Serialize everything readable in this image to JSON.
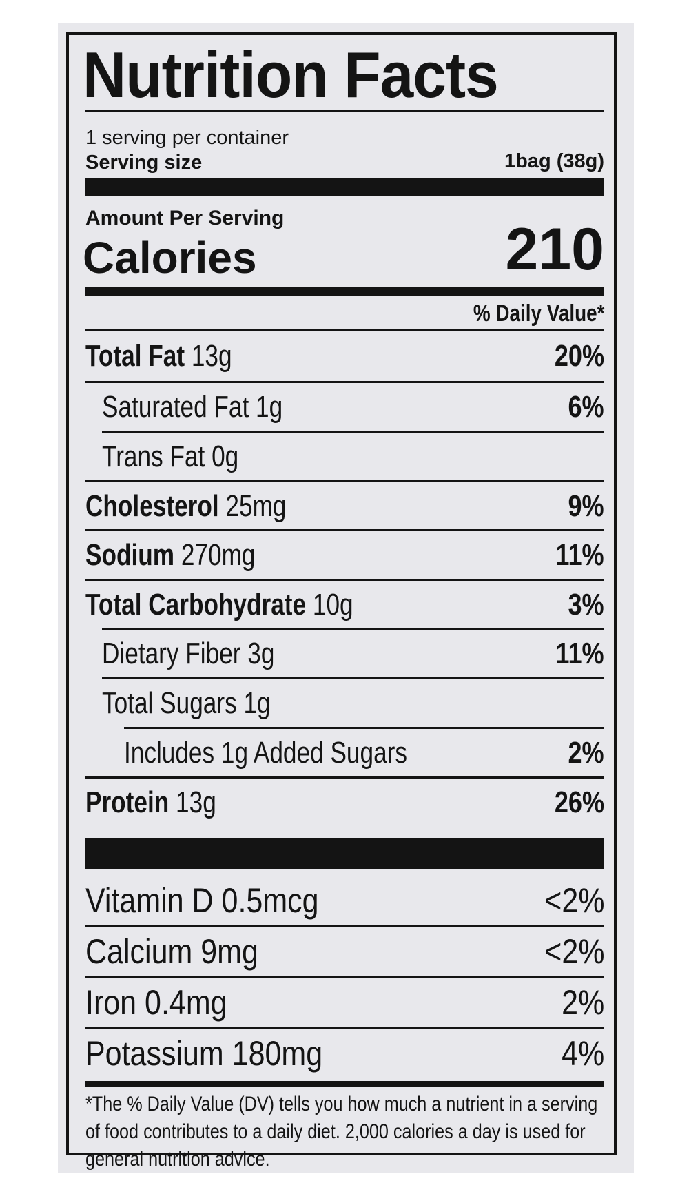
{
  "title": "Nutrition Facts",
  "servings_per_container": "1 serving per container",
  "serving_size_label": "Serving size",
  "serving_size_value": "1bag (38g)",
  "amount_per_serving": "Amount Per Serving",
  "calories_label": "Calories",
  "calories_value": "210",
  "daily_value_header": "% Daily Value*",
  "nutrients": [
    {
      "name": "Total Fat",
      "amount": "13g",
      "dv": "20%"
    },
    {
      "name": "Saturated Fat 1g",
      "amount": "",
      "dv": "6%"
    },
    {
      "name": "Trans Fat 0g",
      "amount": "",
      "dv": ""
    },
    {
      "name": "Cholesterol",
      "amount": "25mg",
      "dv": "9%"
    },
    {
      "name": "Sodium",
      "amount": "270mg",
      "dv": "11%"
    },
    {
      "name": "Total Carbohydrate",
      "amount": "10g",
      "dv": "3%"
    },
    {
      "name": "Dietary Fiber 3g",
      "amount": "",
      "dv": "11%"
    },
    {
      "name": "Total Sugars 1g",
      "amount": "",
      "dv": ""
    },
    {
      "name": "Includes 1g Added Sugars",
      "amount": "",
      "dv": "2%"
    },
    {
      "name": "Protein",
      "amount": "13g",
      "dv": "26%"
    }
  ],
  "vitamins": [
    {
      "name": "Vitamin D 0.5mcg",
      "dv": "<2%"
    },
    {
      "name": "Calcium 9mg",
      "dv": "<2%"
    },
    {
      "name": "Iron 0.4mg",
      "dv": "2%"
    },
    {
      "name": "Potassium 180mg",
      "dv": "4%"
    }
  ],
  "footnote": "*The % Daily Value (DV) tells you how much a nutrient in a serving of food contributes to a daily diet. 2,000 calories a day is used for general nutrition advice."
}
